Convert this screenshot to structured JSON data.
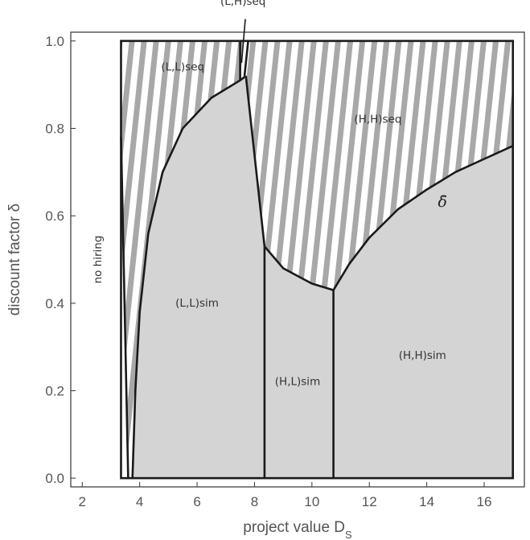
{
  "chart_data": {
    "type": "area",
    "title": "",
    "xlabel": "project value D",
    "xlabel_sub": "S",
    "ylabel": "discount factor δ",
    "xlim": [
      1.6,
      17.4
    ],
    "ylim": [
      -0.02,
      1.02
    ],
    "grid": false,
    "x_ticks": [
      "2",
      "4",
      "6",
      "8",
      "10",
      "12",
      "14",
      "16"
    ],
    "y_ticks": [
      "0.0",
      "0.2",
      "0.4",
      "0.6",
      "0.8",
      "1.0"
    ],
    "plot_frame": {
      "x": [
        3.35,
        17.0
      ],
      "y": [
        0.0,
        1.0
      ]
    },
    "colors": {
      "sim_fill": "#d4d4d4",
      "hatch": "#a8a8a8",
      "boundary": "#1a1a1a",
      "text": "#555555"
    },
    "boundaries": {
      "seq_sim_left": [
        [
          3.75,
          0.0
        ],
        [
          3.85,
          0.2
        ],
        [
          4.0,
          0.38
        ],
        [
          4.3,
          0.56
        ],
        [
          4.8,
          0.7
        ],
        [
          5.5,
          0.8
        ],
        [
          6.5,
          0.87
        ],
        [
          7.5,
          0.91
        ],
        [
          7.7,
          0.92
        ]
      ],
      "seq_sim_drop": [
        [
          7.7,
          0.92
        ],
        [
          8.35,
          0.53
        ]
      ],
      "seq_sim_hl": [
        [
          8.35,
          0.53
        ],
        [
          9.0,
          0.48
        ],
        [
          10.0,
          0.445
        ],
        [
          10.75,
          0.43
        ]
      ],
      "delta_bar": [
        [
          10.75,
          0.43
        ],
        [
          11.3,
          0.49
        ],
        [
          12.0,
          0.55
        ],
        [
          13.0,
          0.615
        ],
        [
          14.0,
          0.66
        ],
        [
          15.0,
          0.7
        ],
        [
          16.0,
          0.73
        ],
        [
          17.0,
          0.76
        ]
      ],
      "no_hiring_line": [
        [
          3.35,
          0.78
        ],
        [
          3.6,
          0.0
        ]
      ],
      "ll_seq_top": [
        [
          7.5,
          0.91
        ],
        [
          7.5,
          1.0
        ]
      ],
      "lh_seq_line": [
        [
          7.65,
          0.92
        ],
        [
          7.78,
          1.0
        ]
      ],
      "ll_hl_vertical": [
        [
          8.35,
          0.53
        ],
        [
          8.35,
          0.0
        ]
      ],
      "hl_hh_vertical": [
        [
          10.75,
          0.43
        ],
        [
          10.75,
          0.0
        ]
      ]
    },
    "annotations": [
      {
        "text": "(L,L)seq",
        "x": 5.5,
        "y": 0.94
      },
      {
        "text": "(L,H)seq",
        "x": 7.6,
        "y": 1.09
      },
      {
        "text": "(H,H)seq",
        "x": 12.3,
        "y": 0.82
      },
      {
        "text": "no hiring",
        "x": 2.55,
        "y": 0.5,
        "rotate": true
      },
      {
        "text": "(L,L)sim",
        "x": 6.0,
        "y": 0.4
      },
      {
        "text": "(H,L)sim",
        "x": 9.5,
        "y": 0.22
      },
      {
        "text": "(H,H)sim",
        "x": 13.85,
        "y": 0.28
      },
      {
        "text": "δ̄",
        "x": 14.55,
        "y": 0.63
      }
    ]
  }
}
